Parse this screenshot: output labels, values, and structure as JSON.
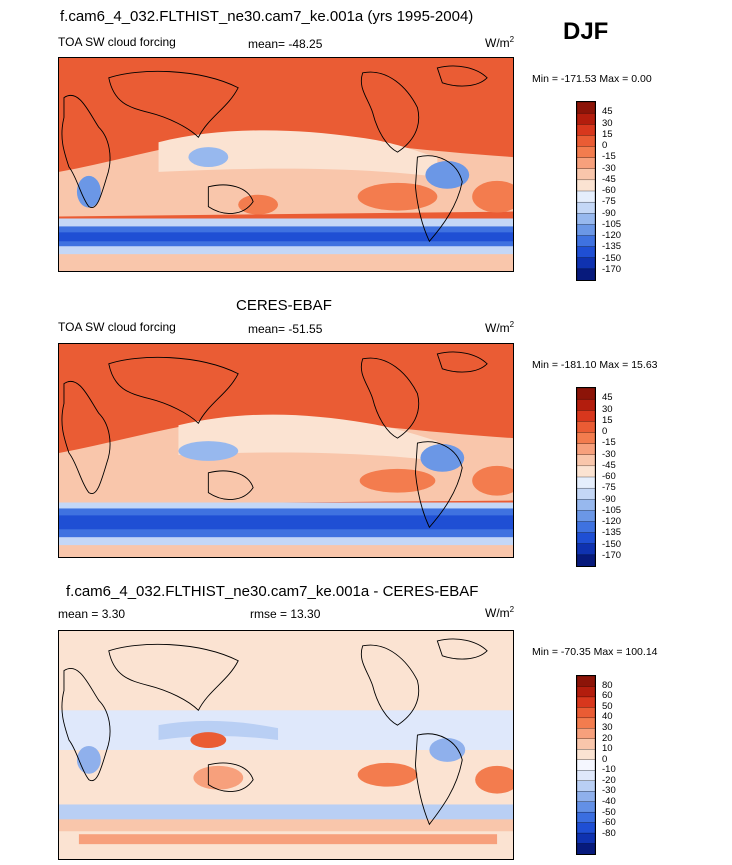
{
  "header": {
    "case_title": "f.cam6_4_032.FLTHIST_ne30.cam7_ke.001a (yrs 1995-2004)",
    "season": "DJF"
  },
  "colors": {
    "scale_15": [
      "#8c1408",
      "#b31d0d",
      "#d8371d",
      "#ea5c34",
      "#f37c4e",
      "#f7a07c",
      "#f9c6ab",
      "#fbe3d2",
      "#e5eefc",
      "#c4d7f6",
      "#97b8ee",
      "#6b97e6",
      "#3f72e0",
      "#1f4fd4",
      "#0f32b0",
      "#071a7c"
    ],
    "scale_16": [
      "#8c1408",
      "#b31d0d",
      "#d8371d",
      "#ea5c34",
      "#f37c4e",
      "#f7a07c",
      "#f9c6ab",
      "#fbe3d2",
      "#f5f7ff",
      "#dfe8fb",
      "#b9cff4",
      "#8fb0ec",
      "#6390e6",
      "#3b6ee0",
      "#1f4fd4",
      "#0f32b0",
      "#071a7c"
    ]
  },
  "panels": [
    {
      "left_label": "TOA SW cloud forcing",
      "mid_label": "mean= -48.25",
      "units": "W/m",
      "units_sup": "2",
      "minmax": "Min = -171.53 Max =   0.00",
      "colorbar_labels": [
        "45",
        "30",
        "15",
        "0",
        "-15",
        "-30",
        "-45",
        "-60",
        "-75",
        "-90",
        "-105",
        "-120",
        "-135",
        "-150",
        "-170"
      ]
    },
    {
      "title": "CERES-EBAF",
      "left_label": "TOA SW cloud forcing",
      "mid_label": "mean= -51.55",
      "units": "W/m",
      "units_sup": "2",
      "minmax": "Min = -181.10 Max = 15.63",
      "colorbar_labels": [
        "45",
        "30",
        "15",
        "0",
        "-15",
        "-30",
        "-45",
        "-60",
        "-75",
        "-90",
        "-105",
        "-120",
        "-135",
        "-150",
        "-170"
      ]
    },
    {
      "title": "f.cam6_4_032.FLTHIST_ne30.cam7_ke.001a - CERES-EBAF",
      "left_label": "mean =   3.30",
      "mid_label": "rmse =  13.30",
      "units": "W/m",
      "units_sup": "2",
      "minmax": "Min = -70.35 Max = 100.14",
      "colorbar_labels": [
        "80",
        "60",
        "50",
        "40",
        "30",
        "20",
        "10",
        "0",
        "-10",
        "-20",
        "-30",
        "-40",
        "-50",
        "-60",
        "-80"
      ]
    }
  ],
  "chart_data": [
    {
      "type": "heatmap",
      "title": "f.cam6_4_032.FLTHIST_ne30.cam7_ke.001a (yrs 1995-2004)",
      "field": "TOA SW cloud forcing",
      "units": "W/m2",
      "mean": -48.25,
      "min": -171.53,
      "max": 0.0,
      "levels": [
        45,
        30,
        15,
        0,
        -15,
        -30,
        -45,
        -60,
        -75,
        -90,
        -105,
        -120,
        -135,
        -150,
        -170
      ]
    },
    {
      "type": "heatmap",
      "title": "CERES-EBAF",
      "field": "TOA SW cloud forcing",
      "units": "W/m2",
      "mean": -51.55,
      "min": -181.1,
      "max": 15.63,
      "levels": [
        45,
        30,
        15,
        0,
        -15,
        -30,
        -45,
        -60,
        -75,
        -90,
        -105,
        -120,
        -135,
        -150,
        -170
      ]
    },
    {
      "type": "heatmap",
      "title": "f.cam6_4_032.FLTHIST_ne30.cam7_ke.001a - CERES-EBAF",
      "units": "W/m2",
      "mean": 3.3,
      "rmse": 13.3,
      "min": -70.35,
      "max": 100.14,
      "levels": [
        80,
        60,
        50,
        40,
        30,
        20,
        10,
        0,
        -10,
        -20,
        -30,
        -40,
        -50,
        -60,
        -80
      ]
    }
  ]
}
